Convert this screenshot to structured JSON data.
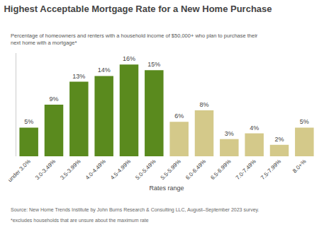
{
  "chart_data": {
    "type": "bar",
    "title": "Highest Acceptable Mortgage Rate for a New Home Purchase",
    "subtitle": "Percentage of homeowners and renters with a household income of $50,000+ who plan to purchase their\nnext home with a mortgage*",
    "xlabel": "Rates range",
    "annotations": [
      "Source: New Home Trends Institute by John Burns Research & Consulting LLC, August–September 2023 survey.",
      "*excludes households that are unsure about the maximum rate"
    ],
    "categories": [
      "under 3.0%",
      "3.0-3.49%",
      "3.5-3.99%",
      "4.0-4.49%",
      "4.5-4.99%",
      "5.0-5.49%",
      "5.5-5.99%",
      "6.0-6.49%",
      "6.5-6.99%",
      "7.0-7.49%",
      "7.5-7.99%",
      "8.0+%"
    ],
    "values": [
      5,
      9,
      13,
      14,
      16,
      15,
      6,
      8,
      3,
      4,
      2,
      5
    ],
    "value_labels": [
      "5%",
      "9%",
      "13%",
      "14%",
      "16%",
      "15%",
      "6%",
      "8%",
      "3%",
      "4%",
      "2%",
      "5%"
    ],
    "colors": [
      "#5a8a1e",
      "#5a8a1e",
      "#5a8a1e",
      "#5a8a1e",
      "#5a8a1e",
      "#5a8a1e",
      "#d4c98a",
      "#d4c98a",
      "#d4c98a",
      "#d4c98a",
      "#d4c98a",
      "#d4c98a"
    ],
    "ylim": [
      0,
      18
    ],
    "data_labels": true,
    "tick_labels": "x",
    "grid": false
  }
}
